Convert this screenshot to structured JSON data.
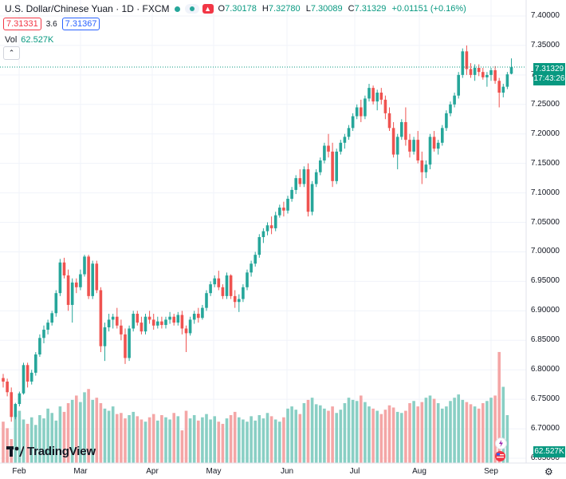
{
  "header": {
    "symbol_title": "U.S. Dollar/Chinese Yuan · 1D · FXCM",
    "ohlc": {
      "o_label": "O",
      "o_value": "7.30178",
      "h_label": "H",
      "h_value": "7.32780",
      "l_label": "L",
      "l_value": "7.30089",
      "c_label": "C",
      "c_value": "7.31329",
      "change": "+0.01151 (+0.16%)"
    },
    "bid": "7.31331",
    "spread": "3.6",
    "ask": "7.31367",
    "vol_label": "Vol",
    "vol_value": "62.527K"
  },
  "price_axis": {
    "ticks": [
      "7.40000",
      "7.35000",
      "7.30000",
      "7.25000",
      "7.20000",
      "7.15000",
      "7.10000",
      "7.05000",
      "7.00000",
      "6.95000",
      "6.90000",
      "6.85000",
      "6.80000",
      "6.75000",
      "6.70000",
      "6.65000"
    ],
    "last_price": "7.31329",
    "countdown": "17:43:26",
    "volume_label": "62.527K"
  },
  "time_axis": {
    "labels": [
      "Feb",
      "Mar",
      "Apr",
      "May",
      "Jun",
      "Jul",
      "Aug",
      "Sep"
    ]
  },
  "branding": {
    "logo_text": "TradingView"
  },
  "colors": {
    "up": "#26a69a",
    "down": "#ef5350",
    "up_volume": "#89cfc4",
    "down_volume": "#f4a6a6",
    "grid": "#f0f3fa",
    "last_price_line": "#089981"
  },
  "chart_data": {
    "type": "candlestick",
    "title": "U.S. Dollar/Chinese Yuan · 1D · FXCM",
    "ylim": [
      6.65,
      7.4
    ],
    "x_labels": [
      "Feb",
      "Mar",
      "Apr",
      "May",
      "Jun",
      "Jul",
      "Aug",
      "Sep"
    ],
    "grid": true,
    "candles": [
      [
        6.786,
        6.793,
        6.77,
        6.78
      ],
      [
        6.78,
        6.785,
        6.755,
        6.762
      ],
      [
        6.762,
        6.77,
        6.712,
        6.72
      ],
      [
        6.72,
        6.744,
        6.716,
        6.742
      ],
      [
        6.742,
        6.763,
        6.738,
        6.76
      ],
      [
        6.76,
        6.812,
        6.758,
        6.808
      ],
      [
        6.808,
        6.812,
        6.77,
        6.78
      ],
      [
        6.78,
        6.8,
        6.775,
        6.795
      ],
      [
        6.795,
        6.83,
        6.79,
        6.826
      ],
      [
        6.826,
        6.86,
        6.822,
        6.854
      ],
      [
        6.854,
        6.875,
        6.845,
        6.868
      ],
      [
        6.868,
        6.885,
        6.86,
        6.88
      ],
      [
        6.88,
        6.9,
        6.875,
        6.896
      ],
      [
        6.896,
        6.935,
        6.89,
        6.93
      ],
      [
        6.93,
        6.988,
        6.925,
        6.982
      ],
      [
        6.982,
        6.99,
        6.955,
        6.96
      ],
      [
        6.96,
        6.97,
        6.9,
        6.91
      ],
      [
        6.91,
        6.955,
        6.88,
        6.948
      ],
      [
        6.948,
        6.955,
        6.93,
        6.94
      ],
      [
        6.94,
        6.97,
        6.935,
        6.962
      ],
      [
        6.962,
        6.995,
        6.958,
        6.992
      ],
      [
        6.992,
        6.995,
        6.92,
        6.925
      ],
      [
        6.925,
        6.985,
        6.92,
        6.98
      ],
      [
        6.98,
        6.985,
        6.93,
        6.935
      ],
      [
        6.935,
        6.94,
        6.83,
        6.84
      ],
      [
        6.84,
        6.88,
        6.815,
        6.872
      ],
      [
        6.872,
        6.895,
        6.865,
        6.885
      ],
      [
        6.885,
        6.895,
        6.87,
        6.89
      ],
      [
        6.89,
        6.905,
        6.87,
        6.875
      ],
      [
        6.875,
        6.885,
        6.85,
        6.86
      ],
      [
        6.86,
        6.87,
        6.81,
        6.82
      ],
      [
        6.82,
        6.875,
        6.815,
        6.87
      ],
      [
        6.87,
        6.9,
        6.865,
        6.895
      ],
      [
        6.895,
        6.9,
        6.875,
        6.88
      ],
      [
        6.88,
        6.89,
        6.86,
        6.865
      ],
      [
        6.865,
        6.895,
        6.86,
        6.89
      ],
      [
        6.89,
        6.9,
        6.878,
        6.885
      ],
      [
        6.885,
        6.895,
        6.868,
        6.875
      ],
      [
        6.875,
        6.89,
        6.87,
        6.882
      ],
      [
        6.882,
        6.89,
        6.87,
        6.876
      ],
      [
        6.876,
        6.89,
        6.87,
        6.885
      ],
      [
        6.885,
        6.898,
        6.878,
        6.89
      ],
      [
        6.89,
        6.895,
        6.875,
        6.88
      ],
      [
        6.88,
        6.898,
        6.875,
        6.893
      ],
      [
        6.893,
        6.9,
        6.86,
        6.87
      ],
      [
        6.87,
        6.875,
        6.83,
        6.862
      ],
      [
        6.862,
        6.89,
        6.858,
        6.885
      ],
      [
        6.885,
        6.9,
        6.878,
        6.895
      ],
      [
        6.895,
        6.905,
        6.88,
        6.888
      ],
      [
        6.888,
        6.91,
        6.885,
        6.905
      ],
      [
        6.905,
        6.935,
        6.9,
        6.93
      ],
      [
        6.93,
        6.95,
        6.925,
        6.945
      ],
      [
        6.945,
        6.96,
        6.94,
        6.955
      ],
      [
        6.955,
        6.968,
        6.935,
        6.94
      ],
      [
        6.94,
        6.945,
        6.92,
        6.925
      ],
      [
        6.925,
        6.965,
        6.92,
        6.96
      ],
      [
        6.96,
        6.962,
        6.92,
        6.925
      ],
      [
        6.925,
        6.935,
        6.905,
        6.915
      ],
      [
        6.915,
        6.928,
        6.898,
        6.92
      ],
      [
        6.92,
        6.945,
        6.915,
        6.94
      ],
      [
        6.94,
        6.97,
        6.935,
        6.965
      ],
      [
        6.965,
        6.985,
        6.958,
        6.98
      ],
      [
        6.98,
        7.0,
        6.975,
        6.995
      ],
      [
        6.995,
        7.03,
        6.99,
        7.025
      ],
      [
        7.025,
        7.04,
        7.015,
        7.035
      ],
      [
        7.035,
        7.05,
        7.028,
        7.045
      ],
      [
        7.045,
        7.06,
        7.03,
        7.04
      ],
      [
        7.04,
        7.068,
        7.035,
        7.062
      ],
      [
        7.062,
        7.08,
        7.058,
        7.075
      ],
      [
        7.075,
        7.085,
        7.06,
        7.07
      ],
      [
        7.07,
        7.095,
        7.065,
        7.09
      ],
      [
        7.09,
        7.11,
        7.085,
        7.105
      ],
      [
        7.105,
        7.13,
        7.098,
        7.125
      ],
      [
        7.125,
        7.14,
        7.11,
        7.115
      ],
      [
        7.115,
        7.145,
        7.11,
        7.14
      ],
      [
        7.14,
        7.15,
        7.06,
        7.068
      ],
      [
        7.068,
        7.12,
        7.062,
        7.115
      ],
      [
        7.115,
        7.14,
        7.11,
        7.135
      ],
      [
        7.135,
        7.16,
        7.13,
        7.155
      ],
      [
        7.155,
        7.185,
        7.15,
        7.18
      ],
      [
        7.18,
        7.2,
        7.16,
        7.17
      ],
      [
        7.17,
        7.185,
        7.11,
        7.12
      ],
      [
        7.12,
        7.175,
        7.115,
        7.17
      ],
      [
        7.17,
        7.19,
        7.165,
        7.185
      ],
      [
        7.185,
        7.2,
        7.175,
        7.195
      ],
      [
        7.195,
        7.215,
        7.19,
        7.21
      ],
      [
        7.21,
        7.235,
        7.205,
        7.23
      ],
      [
        7.23,
        7.25,
        7.225,
        7.245
      ],
      [
        7.245,
        7.258,
        7.22,
        7.23
      ],
      [
        7.23,
        7.265,
        7.225,
        7.26
      ],
      [
        7.26,
        7.285,
        7.255,
        7.278
      ],
      [
        7.278,
        7.282,
        7.25,
        7.255
      ],
      [
        7.255,
        7.275,
        7.24,
        7.27
      ],
      [
        7.27,
        7.278,
        7.25,
        7.258
      ],
      [
        7.258,
        7.265,
        7.225,
        7.235
      ],
      [
        7.235,
        7.245,
        7.205,
        7.21
      ],
      [
        7.21,
        7.22,
        7.16,
        7.165
      ],
      [
        7.165,
        7.2,
        7.14,
        7.195
      ],
      [
        7.195,
        7.225,
        7.19,
        7.22
      ],
      [
        7.22,
        7.245,
        7.18,
        7.19
      ],
      [
        7.19,
        7.2,
        7.16,
        7.17
      ],
      [
        7.17,
        7.195,
        7.165,
        7.19
      ],
      [
        7.19,
        7.205,
        7.15,
        7.155
      ],
      [
        7.155,
        7.17,
        7.115,
        7.135
      ],
      [
        7.135,
        7.155,
        7.125,
        7.148
      ],
      [
        7.148,
        7.2,
        7.14,
        7.195
      ],
      [
        7.195,
        7.205,
        7.17,
        7.175
      ],
      [
        7.175,
        7.19,
        7.165,
        7.185
      ],
      [
        7.185,
        7.215,
        7.18,
        7.21
      ],
      [
        7.21,
        7.24,
        7.205,
        7.235
      ],
      [
        7.235,
        7.255,
        7.23,
        7.25
      ],
      [
        7.25,
        7.27,
        7.245,
        7.265
      ],
      [
        7.265,
        7.305,
        7.26,
        7.3
      ],
      [
        7.3,
        7.345,
        7.295,
        7.34
      ],
      [
        7.34,
        7.35,
        7.3,
        7.31
      ],
      [
        7.31,
        7.32,
        7.295,
        7.3
      ],
      [
        7.3,
        7.318,
        7.29,
        7.312
      ],
      [
        7.312,
        7.318,
        7.298,
        7.305
      ],
      [
        7.305,
        7.312,
        7.292,
        7.296
      ],
      [
        7.296,
        7.305,
        7.28,
        7.3
      ],
      [
        7.3,
        7.312,
        7.29,
        7.308
      ],
      [
        7.308,
        7.315,
        7.285,
        7.29
      ],
      [
        7.29,
        7.295,
        7.245,
        7.27
      ],
      [
        7.27,
        7.285,
        7.262,
        7.28
      ],
      [
        7.28,
        7.305,
        7.276,
        7.301
      ],
      [
        7.302,
        7.328,
        7.301,
        7.313
      ]
    ],
    "volumes": [
      38,
      32,
      22,
      45,
      48,
      40,
      36,
      42,
      35,
      44,
      41,
      50,
      46,
      39,
      52,
      47,
      55,
      58,
      62,
      56,
      65,
      68,
      58,
      60,
      55,
      50,
      48,
      52,
      45,
      46,
      41,
      44,
      47,
      43,
      40,
      38,
      42,
      45,
      39,
      44,
      42,
      40,
      46,
      43,
      30,
      48,
      41,
      44,
      39,
      42,
      45,
      40,
      43,
      38,
      36,
      41,
      44,
      47,
      42,
      40,
      38,
      43,
      39,
      44,
      41,
      46,
      43,
      40,
      38,
      42,
      50,
      52,
      49,
      45,
      55,
      58,
      60,
      54,
      53,
      50,
      48,
      52,
      46,
      49,
      55,
      60,
      58,
      57,
      62,
      56,
      52,
      50,
      48,
      45,
      49,
      53,
      51,
      47,
      46,
      48,
      55,
      57,
      52,
      56,
      60,
      62,
      59,
      55,
      50,
      52,
      57,
      60,
      63,
      58,
      56,
      54,
      52,
      50,
      55,
      57,
      60,
      62,
      102,
      70,
      44
    ]
  }
}
